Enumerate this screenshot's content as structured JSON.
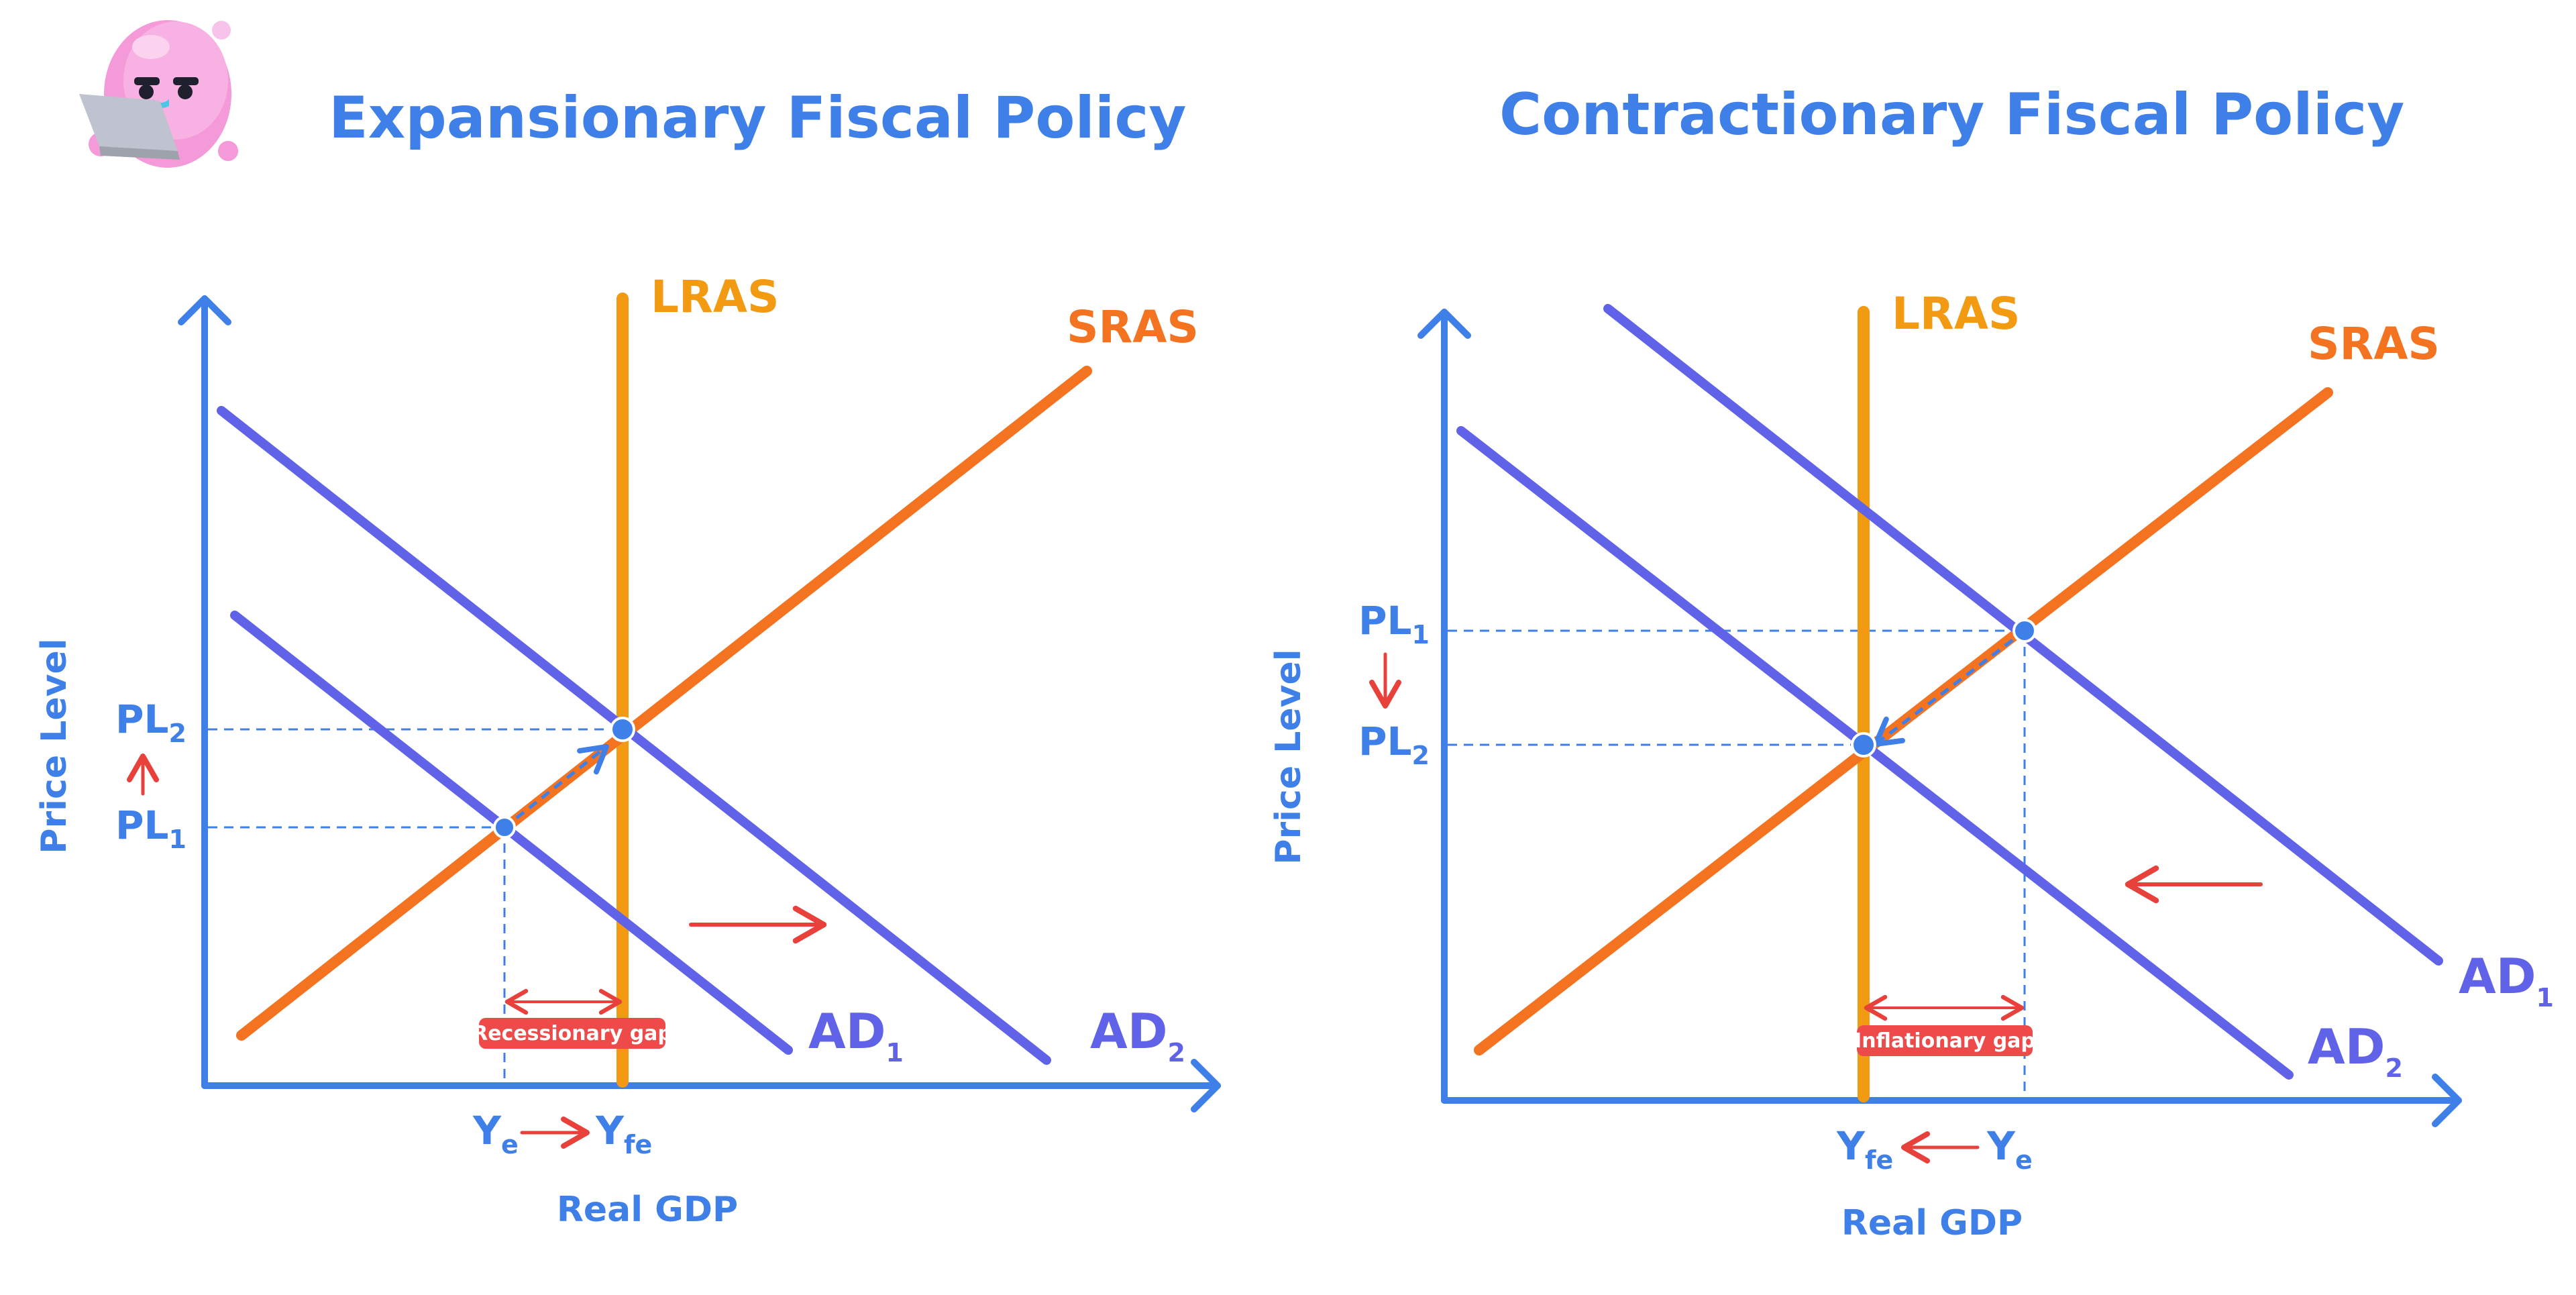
{
  "colors": {
    "axis": "#3f7fe8",
    "lras": "#f29a12",
    "sras": "#f47320",
    "ad": "#6063e8",
    "arrow_red": "#e8403a",
    "dash": "#3f7fe8",
    "gap_bg": "#ee4a4a",
    "point_fill": "#3f7fe8"
  },
  "mascot": {
    "icon": "pink-blob-mascot-with-laptop-icon"
  },
  "expansionary": {
    "title": "Expansionary Fiscal Policy",
    "y_axis_label": "Price Level",
    "x_axis_label": "Real GDP",
    "lras_label": "LRAS",
    "sras_label": "SRAS",
    "ad1": {
      "main": "AD",
      "sub": "1"
    },
    "ad2": {
      "main": "AD",
      "sub": "2"
    },
    "pl_upper": {
      "main": "PL",
      "sub": "2"
    },
    "pl_lower": {
      "main": "PL",
      "sub": "1"
    },
    "y_left": {
      "main": "Y",
      "sub": "e"
    },
    "y_right": {
      "main": "Y",
      "sub": "fe"
    },
    "gap_label": "Recessionary gap"
  },
  "contractionary": {
    "title": "Contractionary Fiscal Policy",
    "y_axis_label": "Price Level",
    "x_axis_label": "Real GDP",
    "lras_label": "LRAS",
    "sras_label": "SRAS",
    "ad1": {
      "main": "AD",
      "sub": "1"
    },
    "ad2": {
      "main": "AD",
      "sub": "2"
    },
    "pl_upper": {
      "main": "PL",
      "sub": "1"
    },
    "pl_lower": {
      "main": "PL",
      "sub": "2"
    },
    "y_left": {
      "main": "Y",
      "sub": "fe"
    },
    "y_right": {
      "main": "Y",
      "sub": "e"
    },
    "gap_label": "Inflationary gap"
  }
}
